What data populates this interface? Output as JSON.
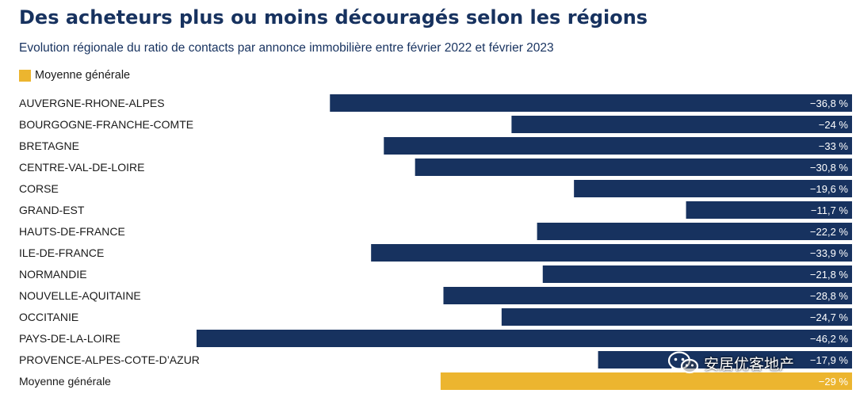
{
  "chart_data": {
    "type": "bar",
    "orientation": "horizontal",
    "title": "Des acheteurs plus ou moins découragés selon les régions",
    "subtitle": "Evolution régionale du ratio de contacts par annonce immobilière entre février 2022 et février 2023",
    "legend": [
      {
        "label": "Moyenne générale",
        "color": "#ecb52f"
      }
    ],
    "legend_placement": "top-left",
    "categories": [
      "AUVERGNE-RHONE-ALPES",
      "BOURGOGNE-FRANCHE-COMTE",
      "BRETAGNE",
      "CENTRE-VAL-DE-LOIRE",
      "CORSE",
      "GRAND-EST",
      "HAUTS-DE-FRANCE",
      "ILE-DE-FRANCE",
      "NORMANDIE",
      "NOUVELLE-AQUITAINE",
      "OCCITANIE",
      "PAYS-DE-LA-LOIRE",
      "PROVENCE-ALPES-COTE-D’AZUR",
      "Moyenne générale"
    ],
    "values": [
      -36.8,
      -24,
      -33,
      -30.8,
      -19.6,
      -11.7,
      -22.2,
      -33.9,
      -21.8,
      -28.8,
      -24.7,
      -46.2,
      -17.9,
      -29
    ],
    "value_labels": [
      "−36,8 %",
      "−24 %",
      "−33 %",
      "−30,8 %",
      "−19,6 %",
      "−11,7 %",
      "−22,2 %",
      "−33,9 %",
      "−21,8 %",
      "−28,8 %",
      "−24,7 %",
      "−46,2 %",
      "−17,9 %",
      "−29 %"
    ],
    "highlight_index": 13,
    "bar_color": "#17325f",
    "highlight_color": "#ecb52f",
    "xlim": [
      -46.2,
      0
    ],
    "grid": false
  },
  "watermark": {
    "text": "安居优客地产",
    "icon": "wechat-icon"
  }
}
